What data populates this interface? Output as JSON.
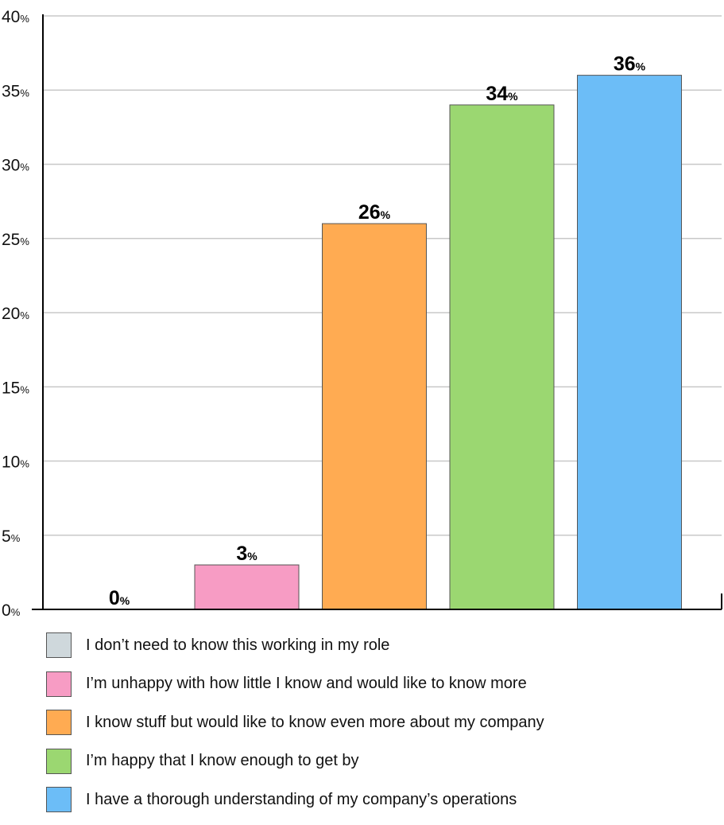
{
  "chart_data": {
    "type": "bar",
    "categories": [
      "I don’t need to know this working in my role",
      "I’m unhappy with how little I know and would like to know more",
      "I know stuff but would like to know even more about my company",
      "I’m happy that I know enough to get by",
      "I have a thorough understanding of my company’s operations"
    ],
    "values": [
      0,
      3,
      26,
      34,
      36
    ],
    "value_labels": [
      "0",
      "3",
      "26",
      "34",
      "36"
    ],
    "value_unit": "%",
    "colors": [
      "#cfd8dc",
      "#f79cc4",
      "#ffab52",
      "#9bd771",
      "#6cbdf7"
    ],
    "ylim": [
      0,
      40
    ],
    "yticks": [
      "0",
      "5",
      "10",
      "15",
      "20",
      "25",
      "30",
      "35",
      "40"
    ],
    "ytick_unit": "%",
    "grid": true,
    "legend_position": "bottom",
    "title": "",
    "xlabel": "",
    "ylabel": ""
  }
}
